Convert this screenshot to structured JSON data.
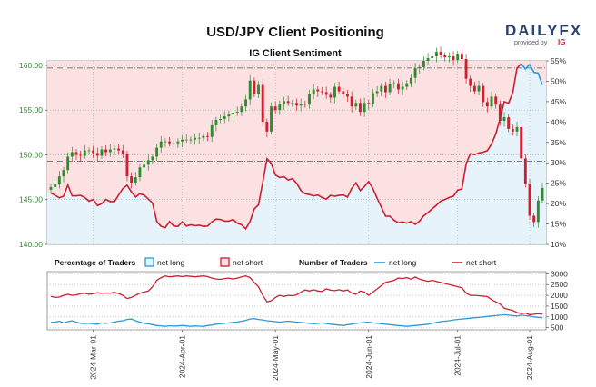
{
  "header": {
    "title": "USD/JPY Client Positioning",
    "subtitle": "IG Client Sentiment",
    "brand_main": "DAILYFX",
    "brand_sub": "provided by",
    "brand_ig": "IG"
  },
  "legend": {
    "pct_title": "Percentage of Traders",
    "pct_long": "net long",
    "pct_short": "net short",
    "num_title": "Number of Traders",
    "num_long": "net long",
    "num_short": "net short"
  },
  "colors": {
    "long_line": "#2a9ad6",
    "long_fill": "#e6f3fb",
    "short_line": "#cc1f2f",
    "short_fill": "#fbe1e2",
    "price_axis": "#2e8b2e",
    "candle_up": "#2e8b2e",
    "candle_down": "#cc1f2f"
  },
  "chart_data": [
    {
      "type": "candlestick",
      "title": "USD/JPY Client Positioning",
      "subtitle": "IG Client Sentiment",
      "y_left_ticks": [
        "140.00",
        "145.00",
        "150.00",
        "155.00",
        "160.00"
      ],
      "y_left_range": [
        140,
        160.5
      ],
      "y_right_ticks": [
        "10%",
        "15%",
        "20%",
        "25%",
        "30%",
        "35%",
        "40%",
        "45%",
        "50%",
        "55%"
      ],
      "y_right_range": [
        10,
        55
      ],
      "reference_levels": [
        {
          "value": 159.7,
          "style": "dash-dot"
        },
        {
          "value": 149.3,
          "style": "dash-dot"
        }
      ],
      "x_ticks": [
        "2024-Mar-01",
        "2024-Apr-01",
        "2024-May-01",
        "2024-Jun-01",
        "2024-Jul-01",
        "2024-Aug-01"
      ],
      "price_close": [
        146.4,
        146.8,
        147.6,
        148.3,
        149.8,
        150.3,
        150.0,
        149.9,
        150.5,
        150.5,
        150.2,
        149.9,
        150.6,
        150.3,
        150.6,
        150.7,
        150.5,
        150.1,
        147.6,
        146.9,
        147.5,
        148.6,
        148.9,
        149.4,
        149.8,
        150.8,
        151.5,
        151.5,
        151.3,
        151.3,
        151.5,
        151.7,
        151.7,
        151.7,
        151.9,
        151.9,
        152.1,
        152.0,
        153.3,
        153.9,
        154.0,
        154.3,
        154.6,
        154.7,
        154.8,
        155.4,
        156.2,
        158.3,
        156.8,
        157.8,
        153.7,
        152.6,
        155.4,
        155.0,
        155.7,
        156.0,
        155.8,
        155.8,
        155.5,
        155.7,
        155.6,
        156.8,
        157.3,
        157.1,
        157.0,
        156.7,
        156.4,
        157.6,
        157.1,
        156.8,
        156.5,
        155.4,
        155.8,
        154.8,
        155.8,
        155.7,
        156.9,
        157.1,
        157.7,
        157.0,
        157.9,
        158.0,
        157.3,
        157.6,
        158.0,
        158.6,
        159.7,
        159.8,
        160.5,
        160.8,
        161.0,
        161.5,
        161.1,
        160.9,
        161.0,
        160.6,
        161.3,
        160.7,
        158.5,
        157.7,
        157.1,
        157.7,
        155.9,
        155.4,
        156.5,
        155.6,
        153.8,
        154.2,
        152.9,
        152.6,
        153.1,
        149.6,
        146.7,
        143.2,
        142.5,
        144.9,
        146.3
      ],
      "client_net_long_pct": [
        22.6,
        22.0,
        21.4,
        21.8,
        24.6,
        21.9,
        21.9,
        22.0,
        21.5,
        20.6,
        21.0,
        19.5,
        20.0,
        21.0,
        20.5,
        20.5,
        22.1,
        23.7,
        24.5,
        22.9,
        21.6,
        22.4,
        22.1,
        21.1,
        20.1,
        15.6,
        14.4,
        14.1,
        15.6,
        14.5,
        14.4,
        15.5,
        14.5,
        14.8,
        14.6,
        14.7,
        14.4,
        14.5,
        15.5,
        16.2,
        16.1,
        15.7,
        15.7,
        16.1,
        15.2,
        14.8,
        13.8,
        15.6,
        18.7,
        19.7,
        25.2,
        31.0,
        29.9,
        27.0,
        26.4,
        26.6,
        25.8,
        26.1,
        25.0,
        23.2,
        22.4,
        22.2,
        21.9,
        22.1,
        21.5,
        21.1,
        22.0,
        21.8,
        22.0,
        22.1,
        21.6,
        23.7,
        25.1,
        23.2,
        24.2,
        25.4,
        23.7,
        21.3,
        19.1,
        16.9,
        16.9,
        15.9,
        15.3,
        15.5,
        15.2,
        15.6,
        14.9,
        15.7,
        17.0,
        17.8,
        18.7,
        19.6,
        20.6,
        21.0,
        21.5,
        21.8,
        23.3,
        23.6,
        29.8,
        32.2,
        32.0,
        32.4,
        32.6,
        33.0,
        34.6,
        37.1,
        40.8,
        45.0,
        44.6,
        47.2,
        53.2,
        54.3,
        53.0,
        54.1,
        52.2,
        52.0,
        49.1
      ]
    },
    {
      "type": "line",
      "y_ticks": [
        "500",
        "1000",
        "1500",
        "2000",
        "2500",
        "3000"
      ],
      "y_range": [
        400,
        3100
      ],
      "series": [
        {
          "name": "net long",
          "values": [
            740,
            760,
            800,
            720,
            780,
            820,
            760,
            700,
            690,
            710,
            680,
            660,
            720,
            700,
            720,
            760,
            800,
            820,
            880,
            900,
            820,
            760,
            700,
            680,
            640,
            600,
            580,
            560,
            590,
            570,
            580,
            600,
            580,
            560,
            580,
            570,
            560,
            600,
            620,
            660,
            680,
            700,
            720,
            740,
            760,
            800,
            840,
            900,
            920,
            880,
            860,
            820,
            800,
            780,
            760,
            780,
            800,
            780,
            760,
            740,
            720,
            700,
            680,
            700,
            720,
            690,
            660,
            640,
            620,
            600,
            640,
            660,
            700,
            720,
            740,
            760,
            720,
            700,
            680,
            660,
            640,
            620,
            600,
            580,
            560,
            580,
            600,
            620,
            640,
            660,
            700,
            740,
            780,
            800,
            820,
            860,
            880,
            900,
            920,
            940,
            960,
            980,
            1000,
            1020,
            1040,
            1060,
            1080,
            1100,
            1080,
            1060,
            1040,
            1080,
            1060,
            1040,
            1000,
            980,
            960
          ]
        },
        {
          "name": "net short",
          "values": [
            1950,
            1900,
            1920,
            2000,
            2050,
            2000,
            2020,
            2080,
            2100,
            2050,
            2080,
            2120,
            2090,
            2110,
            2100,
            2140,
            2080,
            2000,
            1850,
            1900,
            2000,
            2100,
            2150,
            2200,
            2400,
            2700,
            2820,
            2900,
            2860,
            2880,
            2900,
            2870,
            2900,
            2880,
            2860,
            2880,
            2900,
            2870,
            2800,
            2760,
            2740,
            2780,
            2800,
            2760,
            2800,
            2860,
            2900,
            2820,
            2600,
            2400,
            2000,
            1700,
            1750,
            1900,
            2000,
            1950,
            2000,
            1980,
            2020,
            2150,
            2250,
            2200,
            2260,
            2200,
            2180,
            2300,
            2240,
            2220,
            2260,
            2200,
            2250,
            2100,
            2050,
            2200,
            2150,
            2000,
            2150,
            2300,
            2450,
            2600,
            2650,
            2700,
            2800,
            2780,
            2820,
            2750,
            2850,
            2750,
            2700,
            2650,
            2700,
            2650,
            2600,
            2550,
            2500,
            2450,
            2400,
            2350,
            2100,
            2000,
            2000,
            1980,
            1960,
            1940,
            1800,
            1700,
            1600,
            1400,
            1350,
            1300,
            1200,
            1150,
            1180,
            1100,
            1120,
            1150,
            1120
          ]
        }
      ]
    }
  ]
}
